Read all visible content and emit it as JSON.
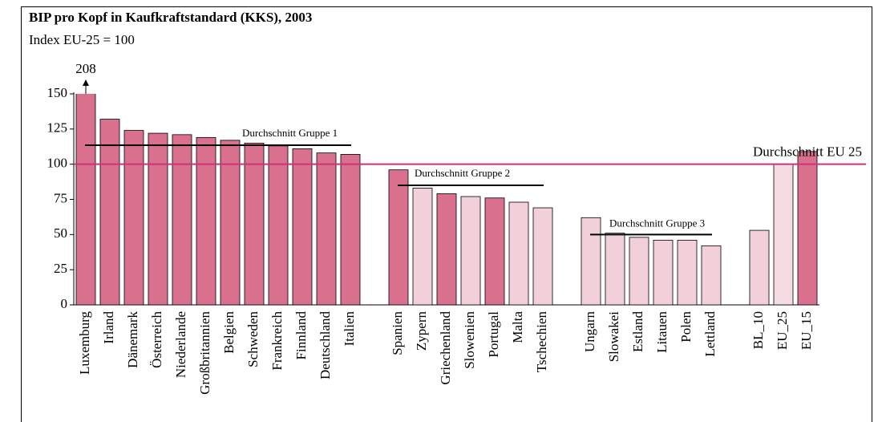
{
  "chart_data": {
    "type": "bar",
    "title": "BIP pro Kopf in Kaufkraftstandard (KKS), 2003",
    "subtitle": "Index EU-25 = 100",
    "categories": [
      "Luxemburg",
      "Irland",
      "Dänemark",
      "Österreich",
      "Niederlande",
      "Großbritannien",
      "Belgien",
      "Schweden",
      "Frankreich",
      "Finnland",
      "Deutschland",
      "Italien",
      null,
      "Spanien",
      "Zypern",
      "Griechenland",
      "Slowenien",
      "Portugal",
      "Malta",
      "Tschechien",
      null,
      "Ungarn",
      "Slowakei",
      "Estland",
      "Litauen",
      "Polen",
      "Lettland",
      null,
      "BL_10",
      "EU_25",
      "EU_15"
    ],
    "values": [
      208,
      132,
      124,
      122,
      121,
      119,
      117,
      115,
      113,
      111,
      108,
      107,
      null,
      96,
      83,
      79,
      77,
      76,
      73,
      69,
      null,
      62,
      51,
      48,
      46,
      46,
      42,
      null,
      53,
      100,
      109
    ],
    "value_labels": [
      "208",
      null,
      null,
      null,
      null,
      null,
      null,
      null,
      null,
      null,
      null,
      null,
      null,
      null,
      null,
      null,
      null,
      null,
      null,
      null,
      null,
      null,
      null,
      null,
      null,
      null,
      null,
      null,
      null,
      null,
      null
    ],
    "colors": [
      "#d9708e",
      "#d9708e",
      "#d9708e",
      "#d9708e",
      "#d9708e",
      "#d9708e",
      "#d9708e",
      "#d9708e",
      "#d9708e",
      "#d9708e",
      "#d9708e",
      "#d9708e",
      null,
      "#d9708e",
      "#f2d0da",
      "#d9708e",
      "#f2d0da",
      "#d9708e",
      "#f2d0da",
      "#f2d0da",
      null,
      "#f2d0da",
      "#f2d0da",
      "#f2d0da",
      "#f2d0da",
      "#f2d0da",
      "#f2d0da",
      null,
      "#f2d0da",
      "#f5dce3",
      "#d9708e"
    ],
    "ylim": [
      0,
      150
    ],
    "yticks": [
      0,
      25,
      50,
      75,
      100,
      125,
      150
    ],
    "reference_lines": [
      {
        "label": "Durchschnitt Gruppe 1",
        "value": 113.5,
        "start": "Luxemburg",
        "end": "Italien",
        "color": "#000000"
      },
      {
        "label": "Durchschnitt Gruppe 2",
        "value": 85,
        "start": "Spanien",
        "end": "Tschechien",
        "color": "#000000"
      },
      {
        "label": "Durchschnitt Gruppe 3",
        "value": 50,
        "start": "Ungarn",
        "end": "Lettland",
        "color": "#000000"
      },
      {
        "label": "Durchschnitt EU 25",
        "value": 100,
        "start": "Luxemburg",
        "end": "EU_15",
        "color": "#cc3377"
      }
    ]
  }
}
